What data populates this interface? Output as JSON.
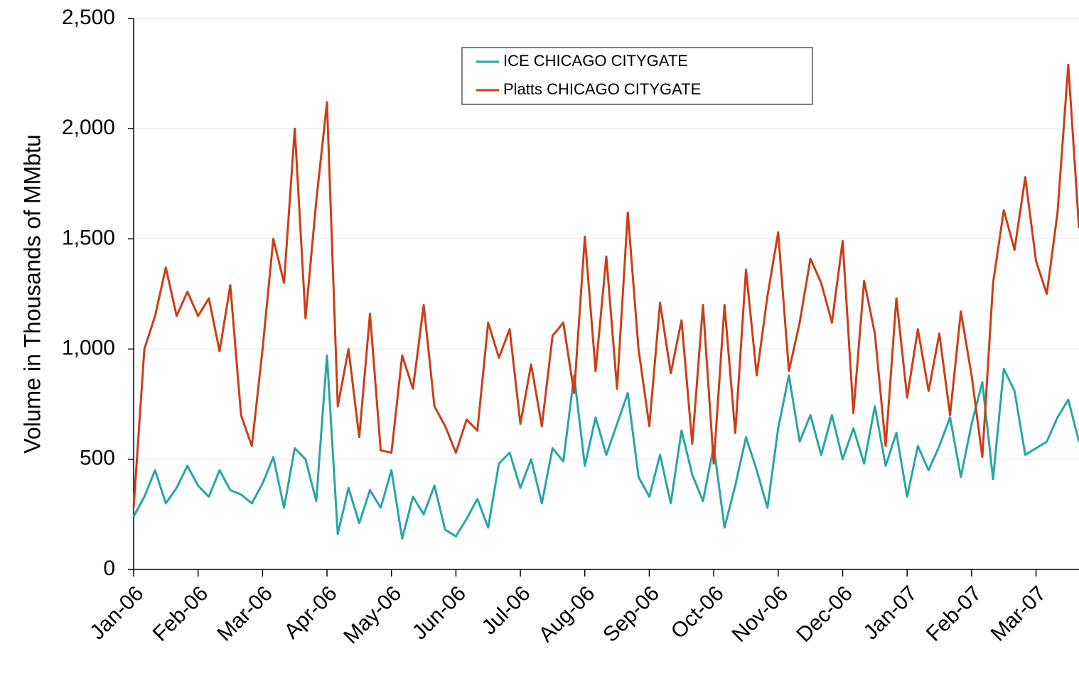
{
  "chart_data": {
    "type": "line",
    "y_label": "Volume in Thousands of MMbtu",
    "categories": [
      "Jan-06",
      null,
      null,
      null,
      null,
      null,
      "Feb-06",
      null,
      null,
      null,
      null,
      null,
      "Mar-06",
      null,
      null,
      null,
      null,
      null,
      "Apr-06",
      null,
      null,
      null,
      null,
      null,
      "May-06",
      null,
      null,
      null,
      null,
      null,
      "Jun-06",
      null,
      null,
      null,
      null,
      null,
      "Jul-06",
      null,
      null,
      null,
      null,
      null,
      "Aug-06",
      null,
      null,
      null,
      null,
      null,
      "Sep-06",
      null,
      null,
      null,
      null,
      null,
      "Oct-06",
      null,
      null,
      null,
      null,
      null,
      "Nov-06",
      null,
      null,
      null,
      null,
      null,
      "Dec-06",
      null,
      null,
      null,
      null,
      null,
      "Jan-07",
      null,
      null,
      null,
      null,
      null,
      "Feb-07",
      null,
      null,
      null,
      null,
      null,
      "Mar-07",
      null,
      null,
      null,
      null
    ],
    "series": [
      {
        "name": "ICE CHICAGO CITYGATE",
        "color": "#26a6a4",
        "values": [
          240,
          330,
          450,
          300,
          370,
          470,
          380,
          330,
          450,
          360,
          340,
          300,
          390,
          510,
          280,
          550,
          500,
          310,
          970,
          160,
          370,
          210,
          360,
          280,
          450,
          140,
          330,
          250,
          380,
          180,
          150,
          230,
          320,
          190,
          480,
          530,
          370,
          500,
          300,
          550,
          490,
          880,
          470,
          690,
          520,
          660,
          800,
          420,
          330,
          520,
          300,
          630,
          430,
          310,
          560,
          190,
          380,
          600,
          450,
          280,
          640,
          880,
          580,
          700,
          520,
          700,
          500,
          640,
          480,
          740,
          470,
          620,
          330,
          560,
          450,
          560,
          690,
          420,
          660,
          850,
          410,
          910,
          810,
          520,
          550,
          580,
          690,
          770,
          580
        ]
      },
      {
        "name": "Platts CHICAGO CITYGATE",
        "color": "#cc3d18",
        "values": [
          280,
          1000,
          1150,
          1370,
          1150,
          1260,
          1150,
          1230,
          990,
          1290,
          700,
          560,
          1000,
          1500,
          1300,
          2000,
          1140,
          1670,
          2120,
          740,
          1000,
          600,
          1160,
          540,
          530,
          970,
          820,
          1200,
          740,
          650,
          530,
          680,
          630,
          1120,
          960,
          1090,
          660,
          930,
          650,
          1060,
          1120,
          800,
          1510,
          900,
          1420,
          820,
          1620,
          1000,
          650,
          1210,
          890,
          1130,
          570,
          1200,
          480,
          1200,
          620,
          1360,
          880,
          1240,
          1530,
          900,
          1120,
          1410,
          1300,
          1120,
          1490,
          710,
          1310,
          1070,
          560,
          1230,
          780,
          1090,
          810,
          1070,
          700,
          1170,
          880,
          510,
          1300,
          1630,
          1450,
          1780,
          1400,
          1250,
          1620,
          2290,
          1550
        ]
      }
    ],
    "ylim": [
      0,
      2500
    ],
    "yticks": [
      0,
      500,
      {
        "value": 1000,
        "label": "1,000"
      },
      {
        "value": 1500,
        "label": "1,500"
      },
      {
        "value": 2000,
        "label": "2,000"
      },
      {
        "value": 2500,
        "label": "2,500"
      }
    ],
    "grid": true,
    "legend": "top-right"
  }
}
